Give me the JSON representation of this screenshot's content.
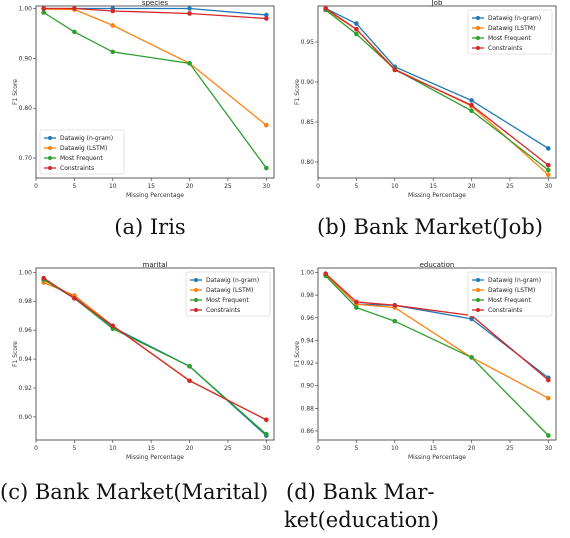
{
  "colors": {
    "s0": "#1f77b4",
    "s1": "#ff7f0e",
    "s2": "#2ca02c",
    "s3": "#d62728"
  },
  "captions": [
    "(a) Iris",
    "(b) Bank Market(Job)",
    "(c) Bank Market(Marital)",
    "(d) Bank Mar-ket(education)"
  ],
  "caption_d_lines": [
    "(d)      Bank      Mar-",
    "ket(education)"
  ],
  "chart_data": [
    {
      "type": "line",
      "title": "species",
      "xlabel": "Missing Percentage",
      "ylabel": "F1 Score",
      "x": [
        1,
        5,
        10,
        20,
        30
      ],
      "xticks": [
        0,
        5,
        10,
        15,
        20,
        25,
        30
      ],
      "xlim": [
        0,
        31
      ],
      "yticks": [
        0.7,
        0.8,
        0.9,
        1.0
      ],
      "ytick_labels": [
        "0.70",
        "0.80",
        "0.90",
        "1.00"
      ],
      "ylim": [
        0.66,
        1.005
      ],
      "legend": "lower-left",
      "series": [
        {
          "name": "Datawig (n-gram)",
          "values": [
            1.0,
            1.0,
            1.0,
            1.0,
            0.987
          ]
        },
        {
          "name": "Datawig (LSTM)",
          "values": [
            0.999,
            0.998,
            0.966,
            0.89,
            0.766
          ]
        },
        {
          "name": "Most Frequent",
          "values": [
            0.992,
            0.953,
            0.913,
            0.89,
            0.68
          ]
        },
        {
          "name": "Constraints",
          "values": [
            1.0,
            1.0,
            0.995,
            0.99,
            0.98
          ]
        }
      ]
    },
    {
      "type": "line",
      "title": "Job",
      "xlabel": "Missing Percentage",
      "ylabel": "F1 Score",
      "x": [
        1,
        5,
        10,
        20,
        30
      ],
      "xticks": [
        0,
        5,
        10,
        15,
        20,
        25,
        30
      ],
      "xlim": [
        0,
        31
      ],
      "yticks": [
        0.8,
        0.85,
        0.9,
        0.95
      ],
      "ytick_labels": [
        "0.80",
        "0.85",
        "0.90",
        "0.95"
      ],
      "ylim": [
        0.78,
        0.995
      ],
      "legend": "top-right",
      "series": [
        {
          "name": "Datawig (n-gram)",
          "values": [
            0.992,
            0.973,
            0.919,
            0.877,
            0.817
          ]
        },
        {
          "name": "Datawig (LSTM)",
          "values": [
            0.99,
            0.966,
            0.916,
            0.87,
            0.784
          ]
        },
        {
          "name": "Most Frequent",
          "values": [
            0.99,
            0.96,
            0.916,
            0.864,
            0.79
          ]
        },
        {
          "name": "Constraints",
          "values": [
            0.992,
            0.966,
            0.915,
            0.871,
            0.796
          ]
        }
      ]
    },
    {
      "type": "line",
      "title": "marital",
      "xlabel": "Missing Percentage",
      "ylabel": "F1 Score",
      "x": [
        1,
        5,
        10,
        20,
        30
      ],
      "xticks": [
        0,
        5,
        10,
        15,
        20,
        25,
        30
      ],
      "xlim": [
        0,
        31
      ],
      "yticks": [
        0.9,
        0.92,
        0.94,
        0.96,
        0.98,
        1.0
      ],
      "ytick_labels": [
        "0.90",
        "0.92",
        "0.94",
        "0.96",
        "0.98",
        "1.00"
      ],
      "ylim": [
        0.884,
        1.003
      ],
      "legend": "top-right",
      "series": [
        {
          "name": "Datawig (n-gram)",
          "values": [
            0.995,
            0.983,
            0.962,
            0.935,
            0.887
          ]
        },
        {
          "name": "Datawig (LSTM)",
          "values": [
            0.993,
            0.984,
            0.963,
            0.925,
            0.898
          ]
        },
        {
          "name": "Most Frequent",
          "values": [
            0.995,
            0.982,
            0.961,
            0.935,
            0.888
          ]
        },
        {
          "name": "Constraints",
          "values": [
            0.996,
            0.982,
            0.963,
            0.925,
            0.898
          ]
        }
      ]
    },
    {
      "type": "line",
      "title": "education",
      "xlabel": "Missing Percentage",
      "ylabel": "F1 Score",
      "x": [
        1,
        5,
        10,
        20,
        30
      ],
      "xticks": [
        0,
        5,
        10,
        15,
        20,
        25,
        30
      ],
      "xtick_labels": [
        "0",
        "5",
        "10",
        "15",
        "20",
        "25",
        "30"
      ],
      "xlim": [
        0,
        31
      ],
      "yticks": [
        0.86,
        0.88,
        0.9,
        0.92,
        0.94,
        0.96,
        0.98,
        1.0
      ],
      "ytick_labels": [
        "0.86",
        "0.88",
        "0.90",
        "0.92",
        "0.94",
        "0.96",
        "0.98",
        "1.00"
      ],
      "ylim": [
        0.852,
        1.004
      ],
      "legend": "top-right",
      "series": [
        {
          "name": "Datawig (n-gram)",
          "values": [
            0.998,
            0.972,
            0.971,
            0.959,
            0.907
          ]
        },
        {
          "name": "Datawig (LSTM)",
          "values": [
            0.998,
            0.972,
            0.969,
            0.925,
            0.889
          ]
        },
        {
          "name": "Most Frequent",
          "values": [
            0.997,
            0.969,
            0.957,
            0.925,
            0.856
          ]
        },
        {
          "name": "Constraints",
          "values": [
            0.999,
            0.974,
            0.971,
            0.962,
            0.905
          ]
        }
      ]
    }
  ]
}
